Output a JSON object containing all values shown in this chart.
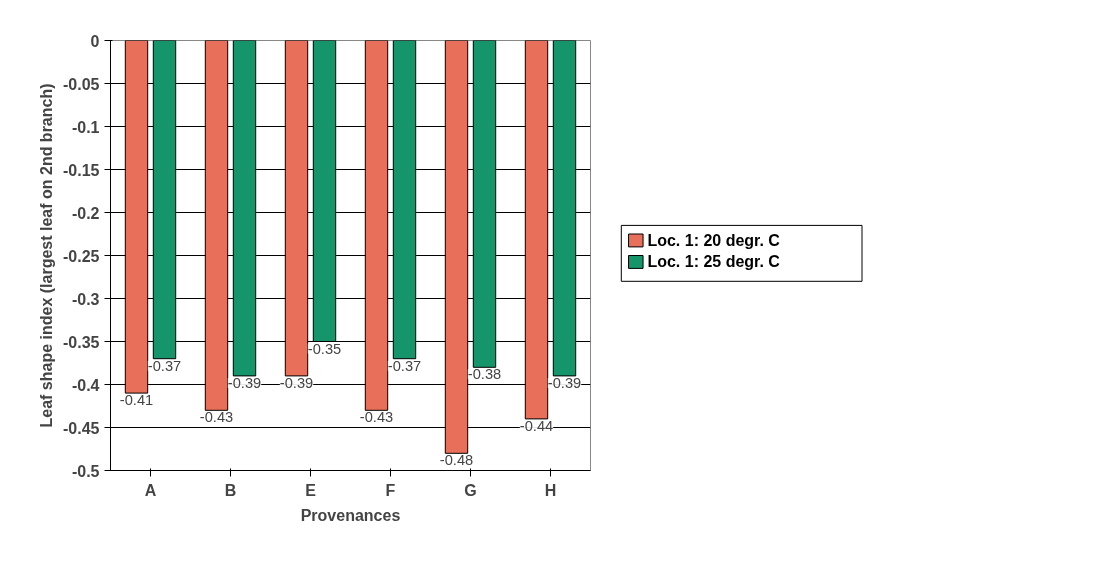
{
  "chart_data": {
    "type": "bar",
    "xlabel": "Provenances",
    "ylabel": "Leaf shape index (largest leaf on 2nd branch)",
    "categories": [
      "A",
      "B",
      "E",
      "F",
      "G",
      "H"
    ],
    "series": [
      {
        "name": "Loc. 1:  20 degr. C",
        "color": "#e8705a",
        "values": [
          -0.41,
          -0.43,
          -0.39,
          -0.43,
          -0.48,
          -0.44
        ]
      },
      {
        "name": "Loc. 1:  25 degr. C",
        "color": "#17956a",
        "values": [
          -0.37,
          -0.39,
          -0.35,
          -0.37,
          -0.38,
          -0.39
        ]
      }
    ],
    "ylim": [
      -0.5,
      0
    ],
    "yticks": [
      0,
      -0.05,
      -0.1,
      -0.15,
      -0.2,
      -0.25,
      -0.3,
      -0.35,
      -0.4,
      -0.45,
      -0.5
    ],
    "grid": "y",
    "legend": "right",
    "data_labels": true
  }
}
